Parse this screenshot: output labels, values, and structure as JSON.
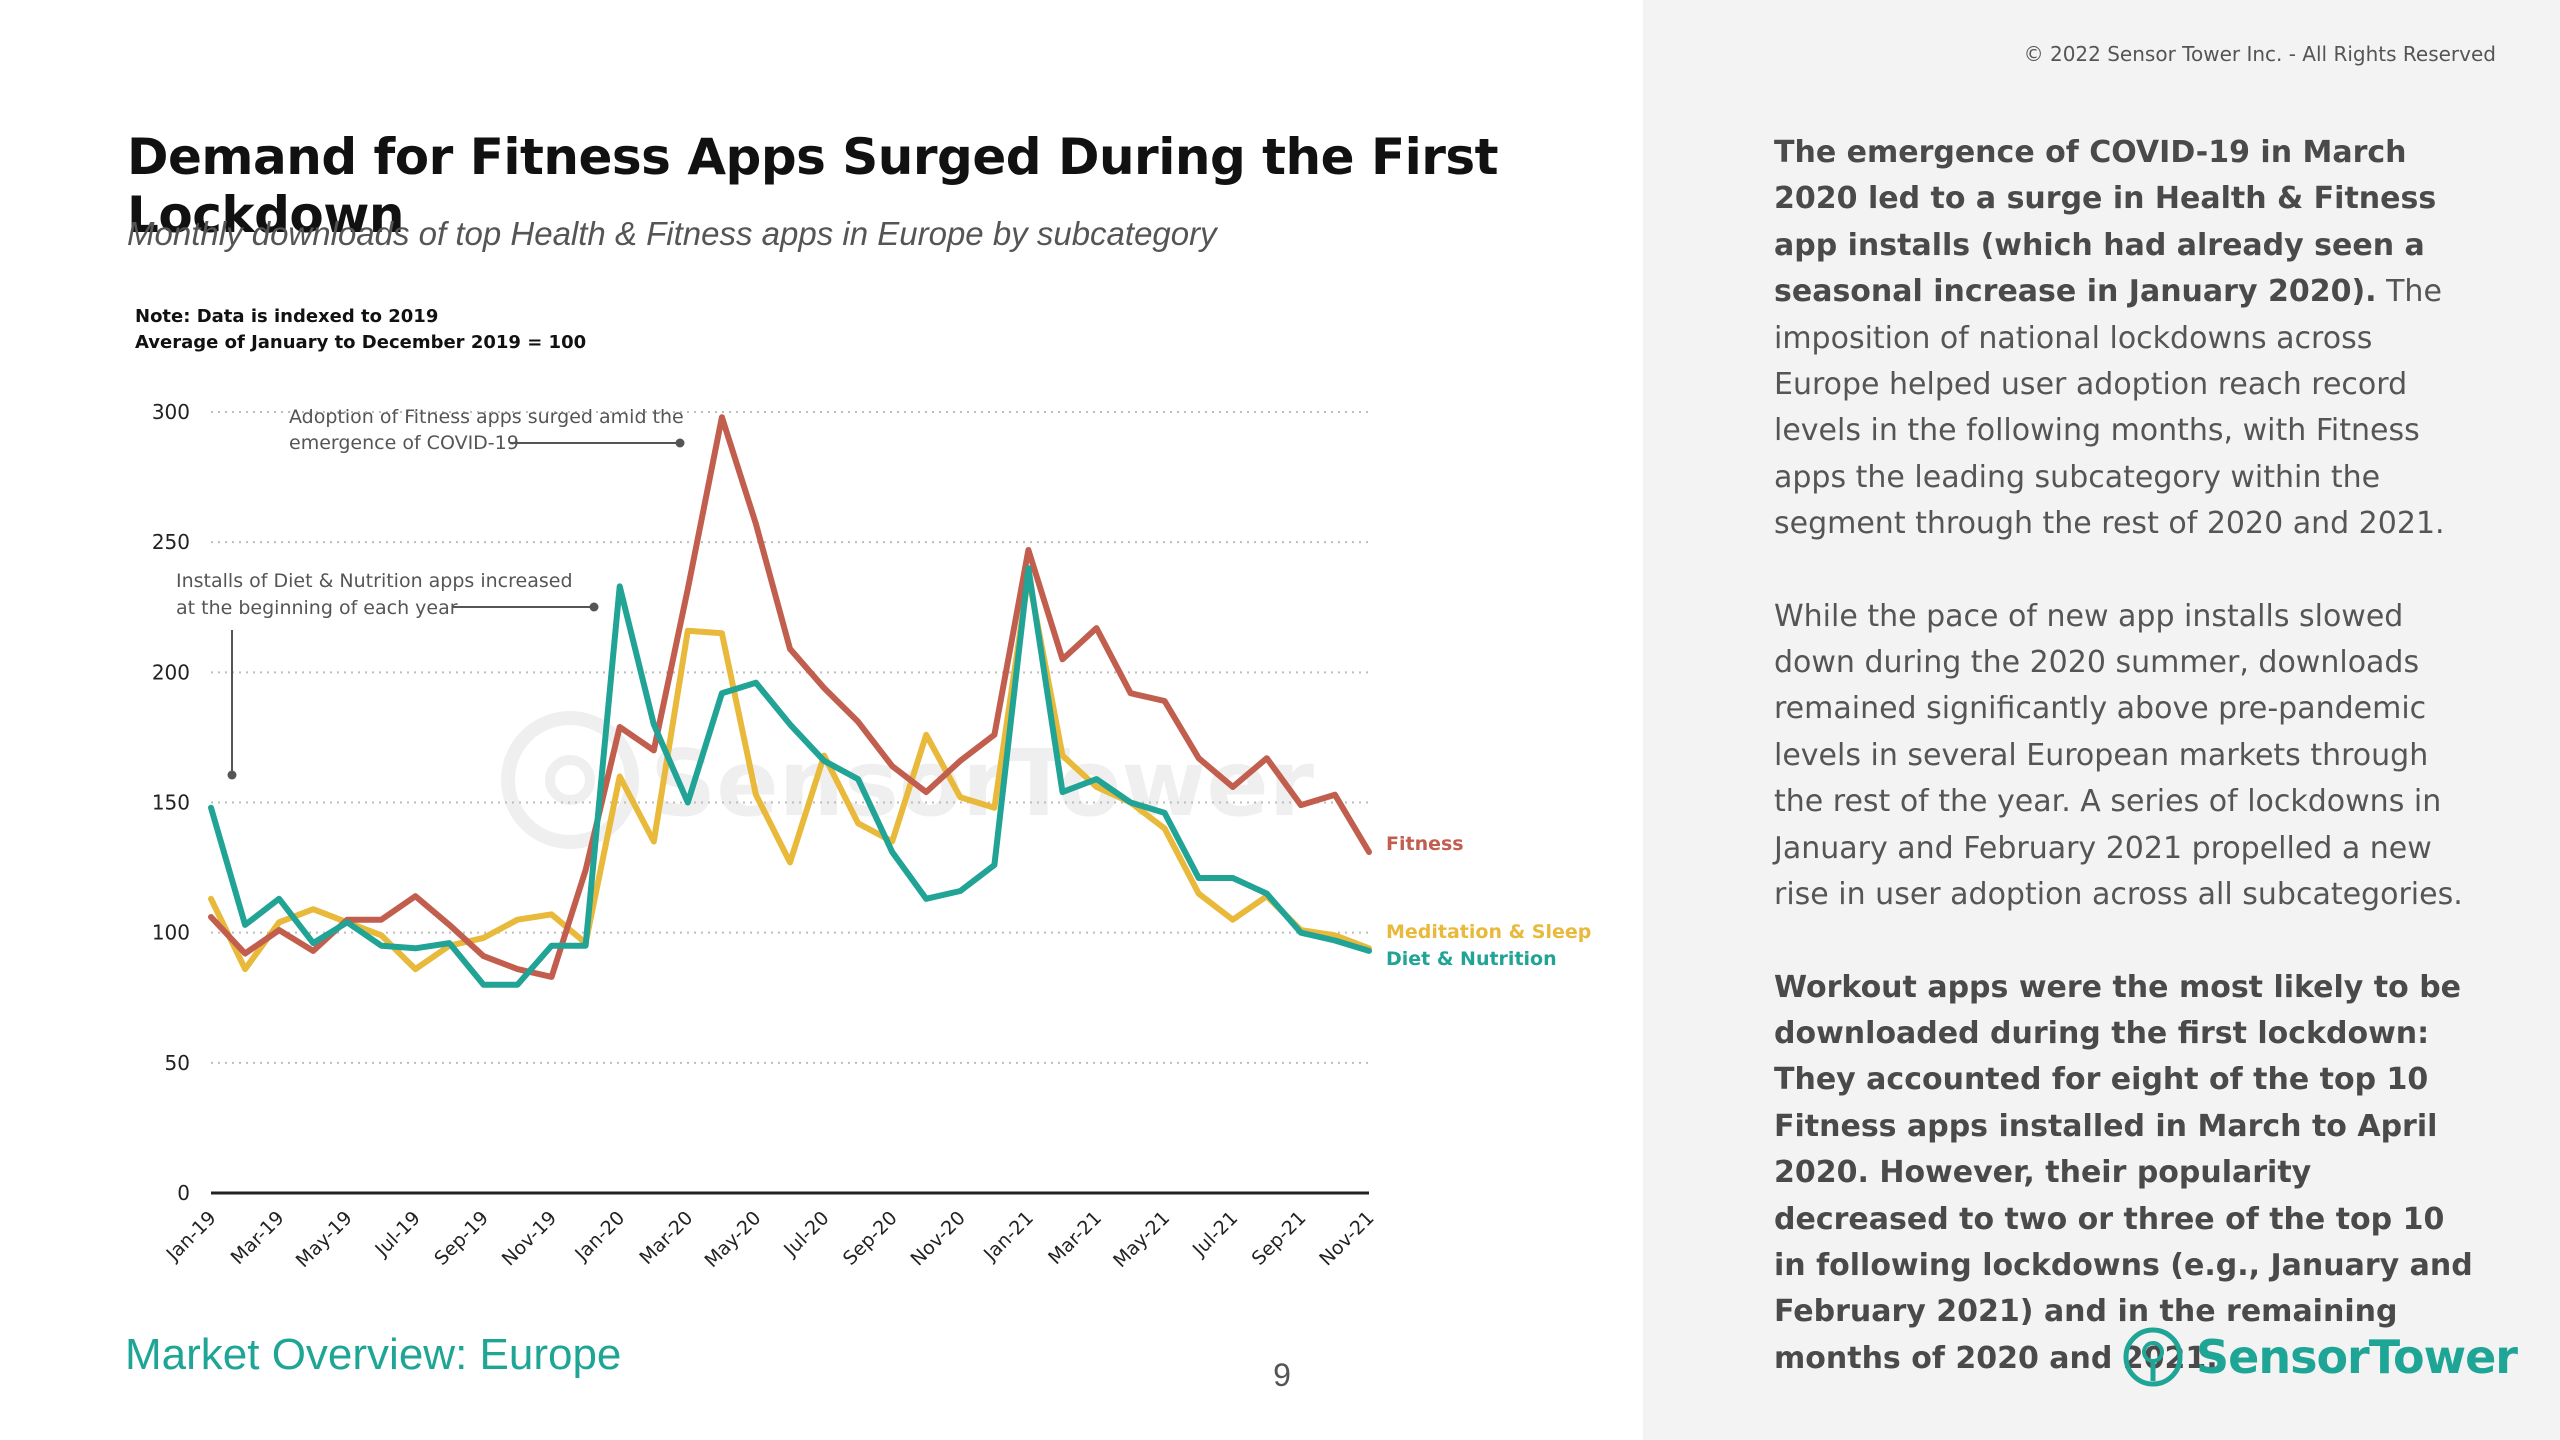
{
  "header": {
    "copyright": "© 2022 Sensor Tower Inc. - All Rights Reserved",
    "title": "Demand for Fitness Apps Surged During the First Lockdown",
    "subtitle": "Monthly downloads of top Health & Fitness apps in Europe by subcategory",
    "note_line1": "Note: Data is indexed to 2019",
    "note_line2": "Average of January to December 2019 = 100"
  },
  "chart_data": {
    "type": "line",
    "x": [
      "Jan-19",
      "Feb-19",
      "Mar-19",
      "Apr-19",
      "May-19",
      "Jun-19",
      "Jul-19",
      "Aug-19",
      "Sep-19",
      "Oct-19",
      "Nov-19",
      "Dec-19",
      "Jan-20",
      "Feb-20",
      "Mar-20",
      "Apr-20",
      "May-20",
      "Jun-20",
      "Jul-20",
      "Aug-20",
      "Sep-20",
      "Oct-20",
      "Nov-20",
      "Dec-20",
      "Jan-21",
      "Feb-21",
      "Mar-21",
      "Apr-21",
      "May-21",
      "Jun-21",
      "Jul-21",
      "Aug-21",
      "Sep-21",
      "Oct-21",
      "Nov-21"
    ],
    "tick_labels": [
      "Jan-19",
      "Mar-19",
      "May-19",
      "Jul-19",
      "Sep-19",
      "Nov-19",
      "Jan-20",
      "Mar-20",
      "May-20",
      "Jul-20",
      "Sep-20",
      "Nov-20",
      "Jan-21",
      "Mar-21",
      "May-21",
      "Jul-21",
      "Sep-21",
      "Nov-21"
    ],
    "ylim": [
      0,
      300
    ],
    "yticks": [
      0,
      50,
      100,
      150,
      200,
      250,
      300
    ],
    "grid": "horizontal-dotted",
    "series": [
      {
        "name": "Fitness",
        "color": "#c25e4e",
        "values": [
          106,
          92,
          101,
          93,
          105,
          105,
          114,
          103,
          91,
          86,
          83,
          124,
          179,
          170,
          232,
          298,
          257,
          209,
          194,
          181,
          164,
          154,
          166,
          176,
          247,
          205,
          217,
          192,
          189,
          167,
          156,
          167,
          149,
          153,
          131
        ]
      },
      {
        "name": "Meditation & Sleep",
        "color": "#e8b93a",
        "values": [
          113,
          86,
          104,
          109,
          104,
          99,
          86,
          95,
          98,
          105,
          107,
          96,
          160,
          135,
          216,
          215,
          153,
          127,
          168,
          142,
          135,
          176,
          152,
          148,
          237,
          168,
          156,
          150,
          140,
          115,
          105,
          114,
          101,
          99,
          94
        ]
      },
      {
        "name": "Diet & Nutrition",
        "color": "#21a395",
        "values": [
          148,
          103,
          113,
          96,
          104,
          95,
          94,
          96,
          80,
          80,
          95,
          95,
          233,
          180,
          150,
          192,
          196,
          180,
          166,
          159,
          131,
          113,
          116,
          126,
          240,
          154,
          159,
          150,
          146,
          121,
          121,
          115,
          100,
          97,
          93
        ]
      }
    ],
    "legend_placement": "inline-right-end",
    "annotations": [
      {
        "text_line1": "Adoption of Fitness apps surged amid the",
        "text_line2": "emergence of COVID-19"
      },
      {
        "text_line1": "Installs of Diet & Nutrition apps increased",
        "text_line2": "at the beginning of each year"
      }
    ]
  },
  "footer": {
    "section": "Market Overview: Europe",
    "page_number": "9"
  },
  "body": {
    "p1_bold": "The emergence of COVID-19 in March 2020 led to a surge in Health & Fitness app installs (which had already seen a seasonal increase in January 2020).",
    "p1_rest": " The imposition of national lockdowns across Europe helped user adoption reach record levels in the following months, with Fitness apps the leading subcategory within the segment through the rest of 2020 and 2021.",
    "p2": "While the pace of new app installs slowed down during the 2020 summer, downloads remained significantly above pre-pandemic levels in several European markets through the rest of the year. A series of lockdowns in January and February 2021 propelled a new rise in user adoption across all subcategories.",
    "p3_bold": "Workout apps were the most likely to be downloaded during the first lockdown: They accounted for eight of the top 10 Fitness apps installed in March to April 2020. However, their popularity decreased to two or three of the top 10 in following lockdowns (e.g., January and February 2021) and in the remaining months of 2020 and 2021."
  },
  "logo": {
    "text": "SensorTower",
    "icon": "sensor-tower-logo-icon",
    "color": "#1fa595"
  }
}
